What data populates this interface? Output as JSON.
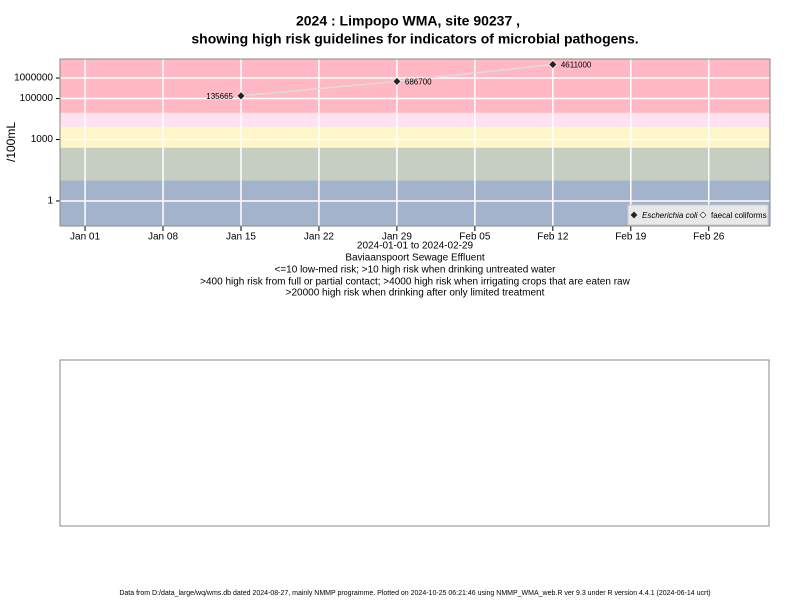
{
  "chart_data": {
    "type": "line",
    "title": [
      "2024 : Limpopo WMA, site 90237 ,",
      "showing high risk guidelines for indicators of microbial pathogens."
    ],
    "y_label": "/100mL",
    "x_label": [
      "2024-01-01 to 2024-02-29",
      "Baviaanspoort Sewage Effluent"
    ],
    "notes": [
      "<=10 low-med risk; >10 high risk when drinking untreated water",
      ">400 high risk from full or partial contact; >4000 high risk when irrigating crops that are eaten raw",
      ">20000 high risk when drinking after only limited treatment"
    ],
    "x": [
      "2024-01-15",
      "2024-01-29",
      "2024-02-12"
    ],
    "series": [
      {
        "name": "Escherichia coli",
        "color": "#222222",
        "line_color": "#dddddd",
        "values": [
          135665,
          686700,
          4611000
        ]
      },
      {
        "name": "faecal coliforms",
        "color": "#222222",
        "values": [
          null,
          null,
          null
        ]
      }
    ],
    "xlim": [
      "2023-12-29T18:00Z",
      "2024-03-02T12:00Z"
    ],
    "xticks": [
      {
        "value": "2024-01-01",
        "label": "Jan 01"
      },
      {
        "value": "2024-01-08",
        "label": "Jan 08"
      },
      {
        "value": "2024-01-15",
        "label": "Jan 15"
      },
      {
        "value": "2024-01-22",
        "label": "Jan 22"
      },
      {
        "value": "2024-01-29",
        "label": "Jan 29"
      },
      {
        "value": "2024-02-05",
        "label": "Feb 05"
      },
      {
        "value": "2024-02-12",
        "label": "Feb 12"
      },
      {
        "value": "2024-02-19",
        "label": "Feb 19"
      },
      {
        "value": "2024-02-26",
        "label": "Feb 26"
      }
    ],
    "ylim": [
      0.06,
      8500000
    ],
    "yticks": [
      1,
      1000,
      100000,
      1000000
    ],
    "log_y": true,
    "grid": true,
    "band_limits": [
      10,
      400,
      4000,
      20000
    ],
    "band_colors": [
      "#a3b3cc",
      "#c6cec2",
      "#fff6c8",
      "#ffe2f2",
      "#ffb8c4"
    ],
    "legend": "bottom-right",
    "footer": "Data from D:/data_large/wq/wms.db dated 2024-08-27, mainly NMMP programme. Plotted on 2024-10-25 06:21:46 using NMMP_WMA_web.R ver 9.3 under R version 4.4.1 (2024-06-14 ucrt)"
  }
}
